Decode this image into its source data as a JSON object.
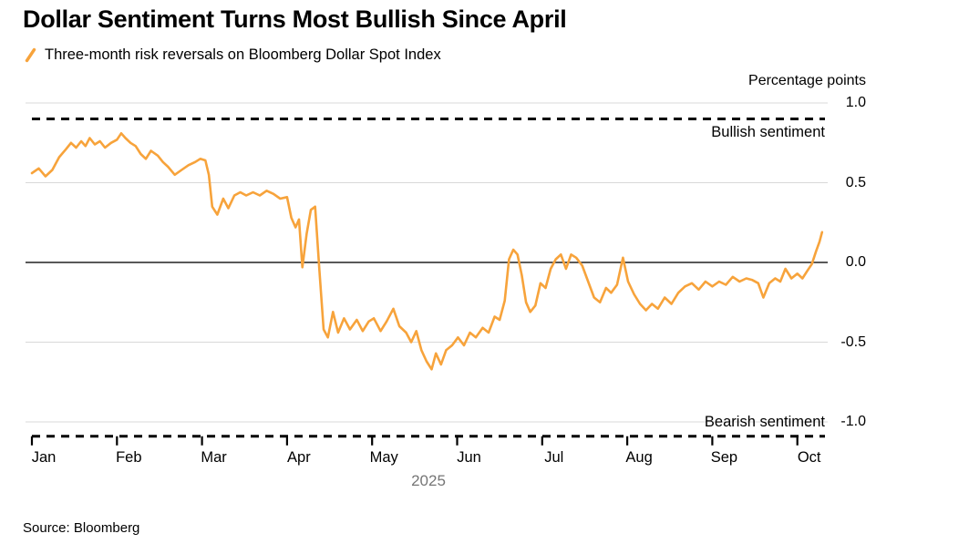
{
  "header": {
    "title": "Dollar Sentiment Turns Most Bullish Since April"
  },
  "legend": {
    "label": "Three-month risk reversals on Bloomberg Dollar Spot Index",
    "marker": "orange-slash"
  },
  "footer": {
    "source": "Source: Bloomberg"
  },
  "colors": {
    "line": "#F7A33B",
    "grid": "#D9D9D9",
    "zero_line": "#222222",
    "reference": "#000000",
    "year_label": "#767676",
    "text": "#000000",
    "background": "#FFFFFF"
  },
  "chart_data": {
    "type": "line",
    "title": "Dollar Sentiment Turns Most Bullish Since April",
    "subtitle": "Three-month risk reversals on Bloomberg Dollar Spot Index",
    "ylabel": "Percentage points",
    "xlabel": "2025",
    "grid": true,
    "legend_position": "top-left",
    "yticks": [
      "1.0",
      "0.5",
      "0.0",
      "-0.5",
      "-1.0"
    ],
    "ytick_values": [
      1.0,
      0.5,
      0.0,
      -0.5,
      -1.0
    ],
    "ylim": [
      -1.15,
      1.0
    ],
    "x_tick_labels": [
      "Jan",
      "Feb",
      "Mar",
      "Apr",
      "May",
      "Jun",
      "Jul",
      "Aug",
      "Sep",
      "Oct"
    ],
    "x_unit": "months since Jan 1 2025",
    "annotations": [
      {
        "text": "Bullish sentiment",
        "position": "top-right",
        "y": 0.82
      },
      {
        "text": "Bearish sentiment",
        "position": "bottom-right",
        "y": -1.0
      }
    ],
    "reference_lines": [
      {
        "value": 0.9,
        "style": "dashed",
        "meaning": "bullish bound"
      },
      {
        "value": -1.09,
        "style": "dashed",
        "meaning": "bearish bound"
      },
      {
        "value": 0.0,
        "style": "solid",
        "meaning": "zero line"
      }
    ],
    "series": [
      {
        "name": "Three-month risk reversals on Bloomberg Dollar Spot Index",
        "color": "#F7A33B",
        "points": [
          [
            0.0,
            0.56
          ],
          [
            0.08,
            0.59
          ],
          [
            0.16,
            0.54
          ],
          [
            0.24,
            0.58
          ],
          [
            0.32,
            0.66
          ],
          [
            0.4,
            0.71
          ],
          [
            0.46,
            0.75
          ],
          [
            0.52,
            0.72
          ],
          [
            0.58,
            0.76
          ],
          [
            0.63,
            0.73
          ],
          [
            0.68,
            0.78
          ],
          [
            0.74,
            0.74
          ],
          [
            0.8,
            0.76
          ],
          [
            0.86,
            0.72
          ],
          [
            0.93,
            0.75
          ],
          [
            1.0,
            0.77
          ],
          [
            1.05,
            0.81
          ],
          [
            1.1,
            0.78
          ],
          [
            1.16,
            0.75
          ],
          [
            1.22,
            0.73
          ],
          [
            1.28,
            0.68
          ],
          [
            1.34,
            0.65
          ],
          [
            1.4,
            0.7
          ],
          [
            1.48,
            0.67
          ],
          [
            1.54,
            0.63
          ],
          [
            1.6,
            0.6
          ],
          [
            1.68,
            0.55
          ],
          [
            1.76,
            0.58
          ],
          [
            1.84,
            0.61
          ],
          [
            1.92,
            0.63
          ],
          [
            1.98,
            0.65
          ],
          [
            2.04,
            0.64
          ],
          [
            2.08,
            0.55
          ],
          [
            2.12,
            0.35
          ],
          [
            2.18,
            0.3
          ],
          [
            2.25,
            0.4
          ],
          [
            2.31,
            0.34
          ],
          [
            2.38,
            0.42
          ],
          [
            2.45,
            0.44
          ],
          [
            2.52,
            0.42
          ],
          [
            2.6,
            0.44
          ],
          [
            2.68,
            0.42
          ],
          [
            2.76,
            0.45
          ],
          [
            2.84,
            0.43
          ],
          [
            2.92,
            0.4
          ],
          [
            3.0,
            0.41
          ],
          [
            3.05,
            0.28
          ],
          [
            3.1,
            0.22
          ],
          [
            3.14,
            0.27
          ],
          [
            3.18,
            -0.03
          ],
          [
            3.23,
            0.18
          ],
          [
            3.28,
            0.33
          ],
          [
            3.33,
            0.35
          ],
          [
            3.38,
            -0.05
          ],
          [
            3.43,
            -0.42
          ],
          [
            3.48,
            -0.47
          ],
          [
            3.54,
            -0.31
          ],
          [
            3.6,
            -0.44
          ],
          [
            3.67,
            -0.35
          ],
          [
            3.74,
            -0.42
          ],
          [
            3.82,
            -0.36
          ],
          [
            3.89,
            -0.43
          ],
          [
            3.96,
            -0.37
          ],
          [
            4.02,
            -0.35
          ],
          [
            4.1,
            -0.43
          ],
          [
            4.17,
            -0.37
          ],
          [
            4.25,
            -0.29
          ],
          [
            4.32,
            -0.4
          ],
          [
            4.4,
            -0.44
          ],
          [
            4.46,
            -0.5
          ],
          [
            4.52,
            -0.43
          ],
          [
            4.58,
            -0.55
          ],
          [
            4.64,
            -0.62
          ],
          [
            4.7,
            -0.67
          ],
          [
            4.75,
            -0.57
          ],
          [
            4.81,
            -0.64
          ],
          [
            4.87,
            -0.55
          ],
          [
            4.94,
            -0.52
          ],
          [
            5.01,
            -0.47
          ],
          [
            5.08,
            -0.52
          ],
          [
            5.15,
            -0.44
          ],
          [
            5.22,
            -0.47
          ],
          [
            5.3,
            -0.41
          ],
          [
            5.37,
            -0.44
          ],
          [
            5.44,
            -0.34
          ],
          [
            5.5,
            -0.36
          ],
          [
            5.56,
            -0.24
          ],
          [
            5.61,
            0.02
          ],
          [
            5.66,
            0.08
          ],
          [
            5.71,
            0.05
          ],
          [
            5.76,
            -0.08
          ],
          [
            5.81,
            -0.25
          ],
          [
            5.86,
            -0.31
          ],
          [
            5.92,
            -0.27
          ],
          [
            5.98,
            -0.13
          ],
          [
            6.04,
            -0.16
          ],
          [
            6.1,
            -0.04
          ],
          [
            6.16,
            0.02
          ],
          [
            6.22,
            0.05
          ],
          [
            6.28,
            -0.04
          ],
          [
            6.34,
            0.05
          ],
          [
            6.4,
            0.03
          ],
          [
            6.47,
            -0.02
          ],
          [
            6.54,
            -0.12
          ],
          [
            6.61,
            -0.22
          ],
          [
            6.68,
            -0.25
          ],
          [
            6.75,
            -0.16
          ],
          [
            6.81,
            -0.19
          ],
          [
            6.88,
            -0.14
          ],
          [
            6.95,
            0.03
          ],
          [
            7.01,
            -0.12
          ],
          [
            7.08,
            -0.2
          ],
          [
            7.15,
            -0.26
          ],
          [
            7.22,
            -0.3
          ],
          [
            7.29,
            -0.26
          ],
          [
            7.36,
            -0.29
          ],
          [
            7.44,
            -0.22
          ],
          [
            7.52,
            -0.26
          ],
          [
            7.6,
            -0.19
          ],
          [
            7.68,
            -0.15
          ],
          [
            7.76,
            -0.13
          ],
          [
            7.84,
            -0.17
          ],
          [
            7.92,
            -0.12
          ],
          [
            8.0,
            -0.15
          ],
          [
            8.08,
            -0.12
          ],
          [
            8.16,
            -0.14
          ],
          [
            8.24,
            -0.09
          ],
          [
            8.32,
            -0.12
          ],
          [
            8.4,
            -0.1
          ],
          [
            8.47,
            -0.11
          ],
          [
            8.54,
            -0.13
          ],
          [
            8.6,
            -0.22
          ],
          [
            8.67,
            -0.13
          ],
          [
            8.74,
            -0.1
          ],
          [
            8.8,
            -0.12
          ],
          [
            8.86,
            -0.04
          ],
          [
            8.93,
            -0.1
          ],
          [
            9.0,
            -0.07
          ],
          [
            9.06,
            -0.1
          ],
          [
            9.12,
            -0.05
          ],
          [
            9.17,
            -0.01
          ],
          [
            9.22,
            0.07
          ],
          [
            9.26,
            0.13
          ],
          [
            9.29,
            0.19
          ]
        ]
      }
    ]
  }
}
